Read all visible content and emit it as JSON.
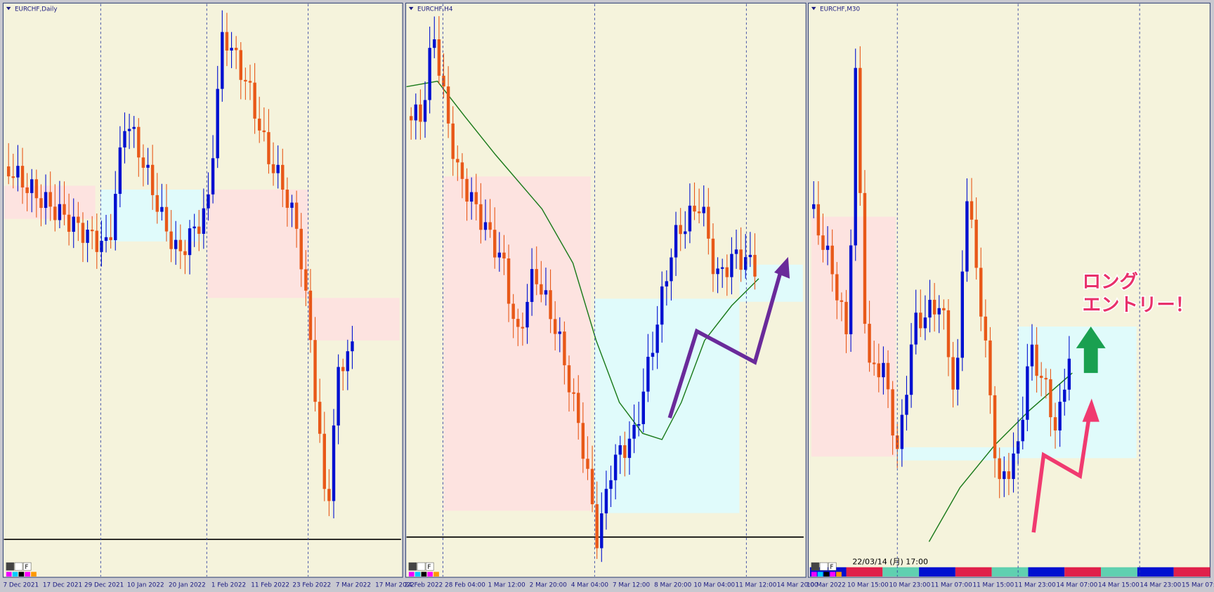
{
  "panels": [
    {
      "title": "EURCHF,Daily",
      "x_labels": [
        "7 Dec 2021",
        "17 Dec 2021",
        "29 Dec 2021",
        "10 Jan 2022",
        "20 Jan 2022",
        "1 Feb 2022",
        "11 Feb 2022",
        "23 Feb 2022",
        "7 Mar 2022",
        "17 Mar 2022"
      ]
    },
    {
      "title": "EURCHF,H4",
      "x_labels": [
        "24 Feb 2022",
        "28 Feb 04:00",
        "1 Mar 12:00",
        "2 Mar 20:00",
        "4 Mar 04:00",
        "7 Mar 12:00",
        "8 Mar 20:00",
        "10 Mar 04:00",
        "11 Mar 12:00",
        "14 Mar 20:00"
      ]
    },
    {
      "title": "EURCHF,M30",
      "x_labels": [
        "10 Mar 2022",
        "10 Mar 15:00",
        "10 Mar 23:00",
        "11 Mar 07:00",
        "11 Mar 15:00",
        "11 Mar 23:00",
        "14 Mar 07:00",
        "14 Mar 15:00",
        "14 Mar 23:00",
        "15 Mar 07:00"
      ]
    }
  ],
  "annotation": {
    "line1": "ロング",
    "line2": "エントリー！"
  },
  "status_time": "22/03/14 (月) 17:00",
  "toolbar_label": "F"
}
